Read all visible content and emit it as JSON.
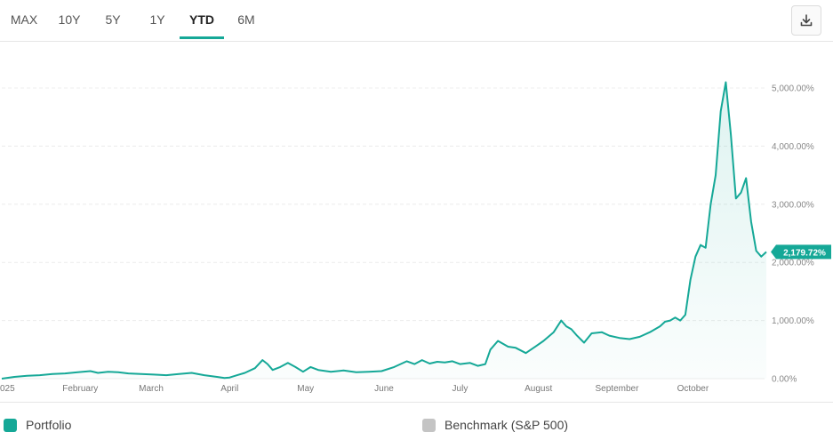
{
  "tabs": [
    {
      "label": "MAX",
      "active": false
    },
    {
      "label": "10Y",
      "active": false
    },
    {
      "label": "5Y",
      "active": false
    },
    {
      "label": "1Y",
      "active": false
    },
    {
      "label": "YTD",
      "active": true
    },
    {
      "label": "6M",
      "active": false
    }
  ],
  "download_icon": "download-icon",
  "colors": {
    "accent": "#15a897",
    "benchmark": "#c4c4c4",
    "fill": "#e6f6f4"
  },
  "legend": {
    "portfolio": "Portfolio",
    "benchmark": "Benchmark (S&P 500)"
  },
  "chart_data": {
    "type": "area",
    "title": "",
    "xlabel": "",
    "ylabel": "",
    "ylim": [
      0,
      5500
    ],
    "grid": true,
    "y_ticks": [
      "0.00%",
      "1,000.00%",
      "2,000.00%",
      "3,000.00%",
      "4,000.00%",
      "5,000.00%"
    ],
    "y_tick_values": [
      0,
      1000,
      2000,
      3000,
      4000,
      5000
    ],
    "x_ticks": [
      {
        "label": "025",
        "day": 0
      },
      {
        "label": "February",
        "day": 31
      },
      {
        "label": "March",
        "day": 59
      },
      {
        "label": "April",
        "day": 90
      },
      {
        "label": "May",
        "day": 120
      },
      {
        "label": "June",
        "day": 151
      },
      {
        "label": "July",
        "day": 181
      },
      {
        "label": "August",
        "day": 212
      },
      {
        "label": "September",
        "day": 243
      },
      {
        "label": "October",
        "day": 273
      }
    ],
    "last_value_label": "2,179.72%",
    "series": [
      {
        "name": "Portfolio",
        "x": [
          0,
          5,
          10,
          15,
          20,
          25,
          30,
          35,
          38,
          42,
          46,
          50,
          55,
          60,
          65,
          70,
          75,
          80,
          85,
          88,
          90,
          93,
          96,
          100,
          103,
          105,
          107,
          110,
          113,
          116,
          119,
          122,
          125,
          130,
          135,
          140,
          145,
          150,
          155,
          160,
          163,
          166,
          169,
          172,
          175,
          178,
          181,
          185,
          188,
          191,
          193,
          196,
          198,
          200,
          203,
          207,
          211,
          214,
          218,
          221,
          223,
          225,
          227,
          230,
          233,
          237,
          240,
          244,
          248,
          252,
          256,
          260,
          262,
          264,
          266,
          268,
          270,
          272,
          274,
          276,
          278,
          280,
          282,
          284,
          286,
          288,
          290,
          292,
          294,
          296,
          298,
          300,
          302
        ],
        "y": [
          0,
          30,
          50,
          60,
          80,
          90,
          110,
          130,
          100,
          120,
          110,
          90,
          80,
          70,
          60,
          80,
          100,
          60,
          30,
          10,
          20,
          60,
          100,
          180,
          320,
          250,
          150,
          200,
          270,
          200,
          120,
          200,
          150,
          120,
          140,
          110,
          120,
          130,
          200,
          300,
          250,
          320,
          260,
          290,
          280,
          300,
          250,
          270,
          220,
          250,
          500,
          650,
          600,
          550,
          530,
          440,
          560,
          650,
          800,
          1000,
          900,
          850,
          750,
          620,
          780,
          800,
          740,
          700,
          680,
          720,
          800,
          900,
          980,
          1000,
          1050,
          1000,
          1100,
          1700,
          2100,
          2300,
          2250,
          3000,
          3500,
          4600,
          5100,
          4200,
          3100,
          3200,
          3450,
          2700,
          2200,
          2100,
          2180
        ]
      }
    ]
  }
}
